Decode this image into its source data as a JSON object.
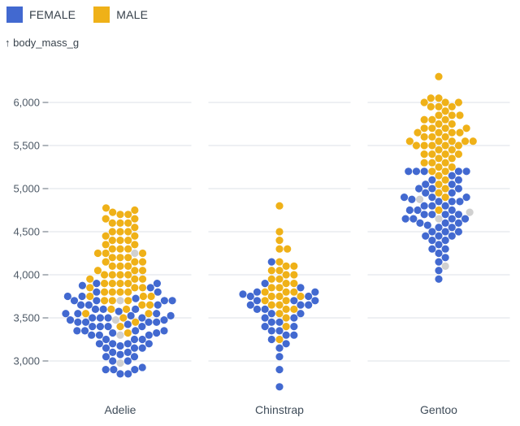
{
  "legend": {
    "items": [
      {
        "label": "FEMALE",
        "color": "#4269d0"
      },
      {
        "label": "MALE",
        "color": "#efb118"
      }
    ]
  },
  "y_axis": {
    "title": "↑ body_mass_g"
  },
  "chart_data": {
    "type": "scatter",
    "subtype": "beeswarm",
    "title": "",
    "xlabel": "",
    "ylabel": "body_mass_g",
    "x_categories": [
      "Adelie",
      "Chinstrap",
      "Gentoo"
    ],
    "ylim": [
      2700,
      6400
    ],
    "grid": true,
    "legend_position": "top-left",
    "yticks": [
      3000,
      3500,
      4000,
      4500,
      5000,
      5500,
      6000
    ],
    "ytick_labels": [
      "3,000",
      "3,500",
      "4,000",
      "4,500",
      "5,000",
      "5,500",
      "6,000"
    ],
    "colors": {
      "female": "#4269d0",
      "male": "#efb118",
      "na": "#d0d0d0",
      "grid": "#dde2e7",
      "tick": "#5f6b77",
      "tick_label": "#4d5966",
      "axis_label": "#3f4c59"
    },
    "groups": [
      {
        "species": "Adelie",
        "FEMALE": [
          2850,
          2850,
          2900,
          2900,
          2900,
          2925,
          3000,
          3000,
          3050,
          3050,
          3075,
          3100,
          3100,
          3150,
          3150,
          3150,
          3175,
          3200,
          3200,
          3200,
          3200,
          3250,
          3250,
          3250,
          3300,
          3300,
          3300,
          3325,
          3325,
          3350,
          3350,
          3350,
          3350,
          3400,
          3400,
          3400,
          3400,
          3425,
          3450,
          3450,
          3450,
          3450,
          3475,
          3475,
          3500,
          3500,
          3500,
          3500,
          3525,
          3525,
          3550,
          3550,
          3550,
          3575,
          3600,
          3600,
          3600,
          3650,
          3650,
          3650,
          3700,
          3700,
          3700,
          3700,
          3725,
          3750,
          3750,
          3800,
          3800,
          3850,
          3875,
          3900,
          3900
        ],
        "MALE": [
          3325,
          3400,
          3450,
          3500,
          3550,
          3550,
          3600,
          3600,
          3650,
          3650,
          3700,
          3700,
          3700,
          3750,
          3750,
          3750,
          3800,
          3800,
          3800,
          3800,
          3850,
          3850,
          3850,
          3900,
          3900,
          3900,
          3900,
          3950,
          3950,
          3950,
          4000,
          4000,
          4000,
          4000,
          4050,
          4050,
          4050,
          4100,
          4100,
          4100,
          4150,
          4150,
          4150,
          4200,
          4200,
          4200,
          4250,
          4250,
          4250,
          4300,
          4300,
          4300,
          4350,
          4350,
          4400,
          4400,
          4400,
          4450,
          4450,
          4500,
          4500,
          4500,
          4550,
          4600,
          4600,
          4600,
          4650,
          4650,
          4700,
          4700,
          4725,
          4750,
          4775
        ],
        "NA": [
          2975,
          3300,
          3475,
          3700,
          4250
        ]
      },
      {
        "species": "Chinstrap",
        "FEMALE": [
          2700,
          2900,
          3050,
          3150,
          3200,
          3250,
          3300,
          3300,
          3350,
          3350,
          3400,
          3400,
          3450,
          3450,
          3500,
          3500,
          3550,
          3550,
          3600,
          3600,
          3650,
          3650,
          3650,
          3700,
          3700,
          3700,
          3750,
          3750,
          3775,
          3800,
          3800,
          3850,
          3900,
          4150
        ],
        "MALE": [
          3250,
          3400,
          3500,
          3550,
          3600,
          3600,
          3650,
          3650,
          3700,
          3700,
          3750,
          3750,
          3750,
          3800,
          3800,
          3800,
          3850,
          3850,
          3900,
          3900,
          3950,
          3950,
          4000,
          4000,
          4050,
          4050,
          4100,
          4100,
          4150,
          4300,
          4300,
          4400,
          4500,
          4800
        ],
        "NA": []
      },
      {
        "species": "Gentoo",
        "FEMALE": [
          3950,
          4050,
          4150,
          4200,
          4250,
          4300,
          4300,
          4350,
          4400,
          4400,
          4450,
          4450,
          4450,
          4500,
          4500,
          4500,
          4550,
          4550,
          4575,
          4600,
          4600,
          4600,
          4650,
          4650,
          4650,
          4650,
          4700,
          4700,
          4700,
          4700,
          4750,
          4750,
          4750,
          4800,
          4800,
          4800,
          4850,
          4850,
          4850,
          4875,
          4900,
          4900,
          4900,
          4950,
          4950,
          5000,
          5000,
          5000,
          5050,
          5050,
          5100,
          5100,
          5150,
          5200,
          5200,
          5200,
          5200,
          5200
        ],
        "MALE": [
          4750,
          4900,
          4950,
          5000,
          5050,
          5100,
          5150,
          5200,
          5200,
          5250,
          5250,
          5300,
          5300,
          5300,
          5350,
          5350,
          5400,
          5400,
          5400,
          5400,
          5450,
          5450,
          5500,
          5500,
          5500,
          5500,
          5500,
          5550,
          5550,
          5550,
          5550,
          5550,
          5600,
          5600,
          5600,
          5650,
          5650,
          5650,
          5650,
          5700,
          5700,
          5700,
          5700,
          5750,
          5750,
          5800,
          5800,
          5800,
          5850,
          5850,
          5850,
          5900,
          5950,
          5950,
          5950,
          6000,
          6000,
          6000,
          6050,
          6050,
          6300
        ],
        "NA": [
          4100,
          4650,
          4725,
          4875
        ]
      }
    ]
  }
}
